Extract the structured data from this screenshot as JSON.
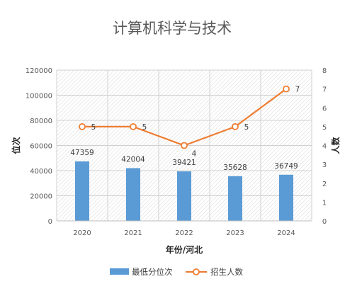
{
  "chart_data": {
    "type": "bar",
    "title": "计算机科学与技术",
    "xlabel": "年份/河北",
    "ylabel": "位次",
    "y2label": "人数",
    "categories": [
      "2020",
      "2021",
      "2022",
      "2023",
      "2024"
    ],
    "series": [
      {
        "name": "最低分位次",
        "type": "bar",
        "axis": "left",
        "color": "#5b9bd5",
        "values": [
          47359,
          42004,
          39421,
          35628,
          36749
        ]
      },
      {
        "name": "招生人数",
        "type": "line",
        "axis": "right",
        "color": "#ed7d31",
        "values": [
          5,
          5,
          4,
          5,
          7
        ]
      }
    ],
    "ylim": [
      0,
      120000
    ],
    "yticks": [
      "0",
      "20000",
      "40000",
      "60000",
      "80000",
      "100000",
      "120000"
    ],
    "y2lim": [
      0,
      8
    ],
    "y2ticks": [
      "0",
      "1",
      "2",
      "3",
      "4",
      "5",
      "6",
      "7",
      "8"
    ],
    "grid": true,
    "legend_position": "bottom"
  }
}
